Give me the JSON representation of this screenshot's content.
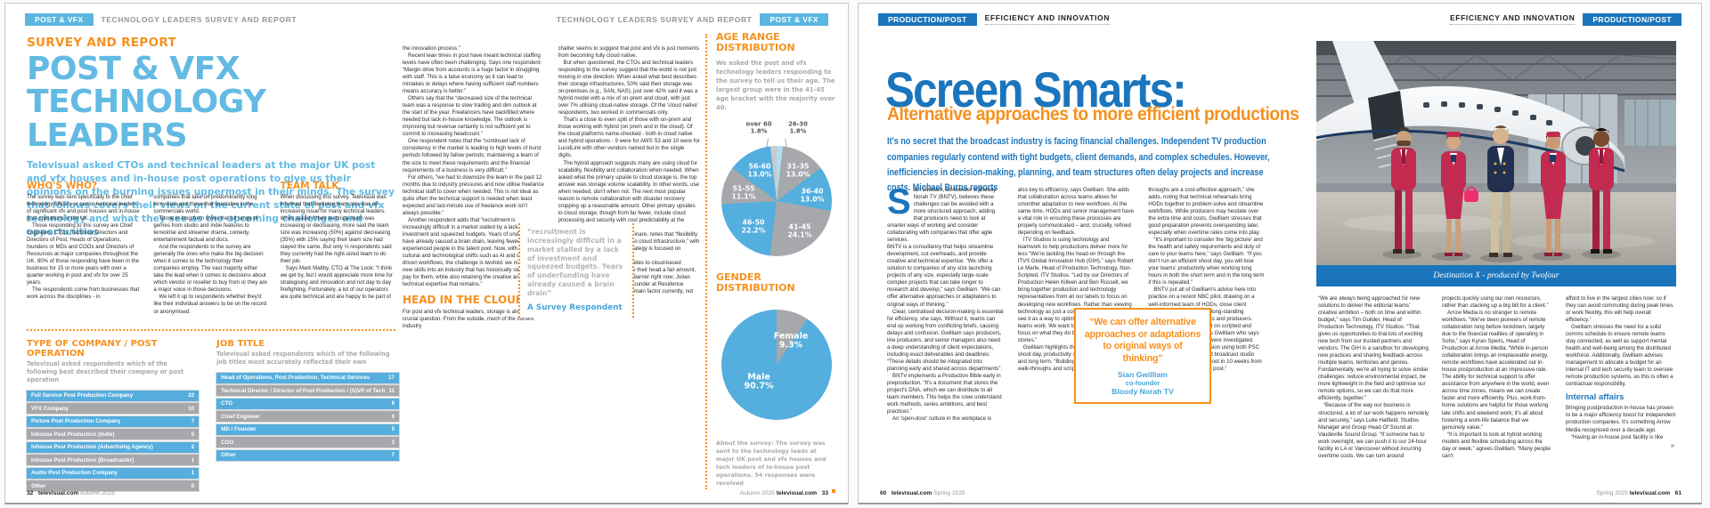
{
  "chart_data": [
    {
      "type": "pie",
      "title": "AGE RANGE DISTRIBUTION",
      "legend_position": "inside",
      "segments": [
        {
          "label": "26-30",
          "value": 1.8,
          "pct_text": "1.8%",
          "color": "#aeddf2"
        },
        {
          "label": "31-35",
          "value": 13.0,
          "pct_text": "13.0%",
          "color": "#a6a8ab"
        },
        {
          "label": "36-40",
          "value": 13.0,
          "pct_text": "13.0%",
          "color": "#54aede"
        },
        {
          "label": "41-45",
          "value": 24.1,
          "pct_text": "24.1%",
          "color": "#a6a8ab"
        },
        {
          "label": "46-50",
          "value": 22.2,
          "pct_text": "22.2%",
          "color": "#54aede"
        },
        {
          "label": "51-55",
          "value": 11.1,
          "pct_text": "11.1%",
          "color": "#a6a8ab"
        },
        {
          "label": "56-60",
          "value": 13.0,
          "pct_text": "13.0%",
          "color": "#54aede"
        },
        {
          "label": "over 60",
          "value": 1.8,
          "pct_text": "1.8%",
          "color": "#c9cacc"
        }
      ]
    },
    {
      "type": "pie",
      "title": "GENDER DISTRIBUTION",
      "legend_position": "inside",
      "segments": [
        {
          "label": "Female",
          "value": 9.3,
          "pct_text": "9.3%",
          "color": "#a6a8ab"
        },
        {
          "label": "Male",
          "value": 90.7,
          "pct_text": "90.7%",
          "color": "#54aede"
        }
      ]
    }
  ],
  "left": {
    "header": {
      "badge": "POST & VFX",
      "strap": "TECHNOLOGY LEADERS SURVEY AND REPORT"
    },
    "kicker": "SURVEY AND REPORT",
    "title": [
      "POST & VFX",
      "TECHNOLOGY LEADERS"
    ],
    "standfirst": "Televisual asked CTOs and technical leaders at the major UK post and vfx houses and in-house post operations to give us their opinions on the burning issues uppermost in their minds. The survey that follows covers their views on the current state of post and vfx technology and what they see as the upcoming challenges and opportunities",
    "whos_who": {
      "heading": "WHO'S WHO?",
      "col1": [
        "The survey was sent specifically to the chief technology officers or senior technical leaders of significant vfx and post houses and in-house post operations in the UK.",
        "Those responding to this survey are Chief Engineers, CTOs, Technical Directors and Directors of Post, Heads of Operations, founders or MDs and COOs and Directors of Resources at major companies throughout the UK. 80% of those responding have been in the business for 15 or more years with over a quarter working in post and vfx for over 25 years.",
        "The respondents come from businesses that work across the disciplines - in"
      ],
      "col2": [
        "companies that take on predominantly long form work and those that specialise in the commercials world.",
        "Those in long-form cover the full range of genres from studio and indie features to terrestrial and streamer drama, comedy, entertainment factual and docs.",
        "And the respondents to the survey are generally the ones who make the big decision when it comes to the technology their companies employ. The vast majority either take the lead when it comes to decisions about which vendor or reseller to buy from or they are a major voice in those decisions.",
        "We left it up to respondents whether they'd like their individual answers to be on the record or anonymised."
      ]
    },
    "team_talk": {
      "heading": "TEAM TALK",
      "col": [
        "When discussing this survey, Televisual was informed that declining team size was an increasing issue for many technical leaders. When asked if their technical team was increasing or decreasing, more said the team size was increasing (50%) against decreasing (35%) with 15% saying their team size had stayed the same. But only ⅓ respondents said they currently had the right-sized team to do their job.",
        "Says Mark Maltby, CTO at The Look: “I think we get by, but I would appreciate more time for strategising and innovation and not day to day firefighting. Fortunately, a lot of our operators are quite technical and are happy to be part of"
      ]
    },
    "col4a": [
      "the innovation process.”",
      "Recent lean times in post have meant technical staffing levels have often been challenging. Says one respondent: “Margin drive from accounts is a huge factor in struggling with staff. This is a false economy as it can lead to mistakes or delays where having sufficient staff numbers means accuracy is better.”",
      "Others say that the “decreased size of the technical team was a response to slow trading and dim outlook at the start of the year. Freelancers have backfilled where needed but lack in-house knowledge. The outlook is improving but revenue certainty is not sufficient yet to commit to increasing headcount.”",
      "One respondent notes that the “continued lack of consistency in the market is leading to high levels of burst periods followed by fallow periods; maintaining a team of the size to meet these requirements and the financial requirements of a business is very difficult.”",
      "For others, “we had to downsize the team in the past 12 months due to industry pressures and now utilise freelance technical staff to cover when needed. This is not ideal as quite often the technical support is needed when least expected and last-minute use of freelance work isn't always possible.”",
      "Another respondent adds that “recruitment is increasingly difficult in a market stalled by a lack of investment and squeezed budgets. Years of underfunding have already caused a brain drain, leaving fewer experienced people in the talent pool. Now, with impending cultural and technological shifts such as AI and cloud-driven workflows, the challenge is twofold: we must attract new skills into an industry that has historically struggled to pay for them, while also retaining the creative and technical expertise that remains.”"
    ],
    "clouds": {
      "heading": "HEAD IN THE CLOUDS",
      "paras": [
        "For post and vfx technical leaders, storage is always a crucial question. From the outside, much of the current industry"
      ]
    },
    "col5": [
      "chatter seems to suggest that post and vfx is just moments from becoming fully cloud native.",
      "But when questioned, the CTOs and technical leaders responding to the survey suggest that the world is not just moving in one direction. When asked what best describes their storage infrastructures, 50% said their storage was on-premises (e.g., SAN, NAS), just over 42% said it was a hybrid model with a mix of on-prem and cloud, with just over 7% utilising cloud-native storage. Of the 'cloud native' respondents, two worked in commercials only.",
      "That's a close to even split of those with on-prem and those working with hybrid (on prem and in the cloud). Of the cloud platforms name-checked - both in cloud native and hybrid operations - 9 were for AWS S3 and 10 were for LucidLink with other vendors named but in the single digits.",
      "The hybrid approach suggests many are using cloud for scalability, flexibility and collaboration when needed. When asked what the primary upside to cloud storage is, the top answer was storage volume scalability. In other words, use when needed, don't when not. The next most popular reason is remote collaboration with disaster recovery cropping up a reasonable amount. Other primary upsides to cloud storage, though from far fewer, include cloud processing and security with cost predictability at the bottom of the list.",
      "Darren Woolfson, CTO at Molinare, notes that “flexibility and resilience are key benefits to cloud infrastructure,” with others saying that “our cloud strategy is focused on security, resilience and scaling.”",
      "But many note current downsides to cloud-based storage. Security concerns raise their head a fair amount, but cost seems to be the major barrier right now; Julian Nelson, Head of Post and Co-Founder at Residence Pictures, notes that “cost is the main factor currently, not only its"
    ],
    "quote": {
      "text": "“recruitment is increasingly difficult in a market stalled by a lack of investment and squeezed budgets. Years of underfunding have already caused a brain drain”",
      "attribution": "A Survey Respondent"
    },
    "table1": {
      "heading": "TYPE OF COMPANY / POST OPERATION",
      "sub": "Televisual asked respondents which of the following best described their company or post operation",
      "rows": [
        {
          "label": "Full Service Post Production Company",
          "value": "22"
        },
        {
          "label": "VFX Company",
          "value": "10"
        },
        {
          "label": "Picture Post Production Company",
          "value": "7"
        },
        {
          "label": "Inhouse Post Production (Indie)",
          "value": "5"
        },
        {
          "label": "Inhouse Post Production (Advertising Agency)",
          "value": "2"
        },
        {
          "label": "Inhouse Post Production (Broadcaster)",
          "value": "1"
        },
        {
          "label": "Audio Post Production Company",
          "value": "1"
        },
        {
          "label": "Other",
          "value": "6"
        }
      ]
    },
    "table2": {
      "heading": "JOB TITLE",
      "sub": "Televisual asked respondents which of the following job titles most accurately reflected their own",
      "rows": [
        {
          "label": "Head of Operations, Post Production, Technical Services",
          "value": "17"
        },
        {
          "label": "Technical Director / Director of Post Production / (S)VP of Tech",
          "value": "11"
        },
        {
          "label": "CTO",
          "value": "8"
        },
        {
          "label": "Chief Engineer",
          "value": "6"
        },
        {
          "label": "MD / Founder",
          "value": "5"
        },
        {
          "label": "COO",
          "value": "3"
        },
        {
          "label": "Other",
          "value": "7"
        }
      ]
    },
    "rail": {
      "age_heading": "AGE RANGE DISTRIBUTION",
      "age_intro": "We asked the post and vfx technology leaders responding to the survey to tell us their age. The largest group were in the 41-45 age bracket with the majority over 40.",
      "gender_heading": "GENDER DISTRIBUTION",
      "about": "About the survey: The survey was sent to the technology leads at major UK post and vfx houses and tech leaders of in-house post operations. 54 responses were received"
    },
    "footer_left": {
      "page": "32",
      "site": "televisual.com",
      "season": "Autumn 2025"
    },
    "footer_right": {
      "season": "Autumn 2025",
      "site": "televisual.com",
      "page": "33"
    }
  },
  "right": {
    "header": {
      "badge": "PRODUCTION/POST",
      "strap": "EFFICIENCY AND INNOVATION"
    },
    "title": "Screen Smarts:",
    "subtitle": "Alternative approaches to more efficient productions",
    "standfirst": "It's no secret that the broadcast industry is facing financial challenges. Independent TV production companies regularly contend with tight budgets, client demands, and complex schedules. However, inefficiencies in decision-making, planning, and team structures often delay projects and increase costs. Michael Burns reports",
    "dropcap": "S",
    "col1_lead": "ian Gwilliam, co-founder of Bloody Norah TV (BNTV), believes these challenges can be avoided with a more structured approach, adding that producers need to look at smarter ways of working and consider collaborating with companies that offer agile services.",
    "col1": [
      "BNTV is a consultancy that helps streamline development, cut overheads, and provide creative and technical expertise. “We offer a solution to companies of any size launching projects of any size, especially large-scale complex projects that can take longer to research and develop,” says Gwilliam. “We can offer alternative approaches or adaptations to original ways of thinking.”",
      "Clear, centralised decision-making is essential for efficiency, she says. Without it, teams can end up working from conflicting briefs, causing delays and confusion. Gwilliam says producers, line producers, and senior managers also need a deep understanding of client expectations, including exact deliverables and deadlines: “These details should be integrated into planning early and shared across departments”.",
      "BNTV implements a Production Bible early in preproduction. “It's a document that stores the project's DNA, which we can distribute to all team members. This helps the crew understand work methods, series ambitions, and best practices.”",
      "An 'open-door' culture in the workplace is"
    ],
    "col2": [
      "also key to efficiency, says Gwilliam. She adds that collaboration across teams allows for smoother adaptation to new workflows. At the same time, HODs and senior management have a vital role in ensuring these processes are properly communicated – and, crucially, refined depending on feedback.",
      "ITV Studios is using technology and teamwork to help productions deliver more for less “We're tackling this head-on through the ITVS Global Innovation Hub (GIH),” says Robert Le Marle, Head of Production Technology, Non-Scripted, ITV Studios. “Led by our Directors of Production Helen Killeen and Ben Russell, we bring together production and technology representatives from all our labels to focus on developing new workflows. Rather than viewing technology as just a cost-cutting measure, we see it as a way to optimise how our creative teams work. We want to free up our talent to focus on what they do best – telling compelling stories.”",
      "Gwilliam highlights that without an efficient shoot day, productivity suffers both in the short and long term. “Building in rehearsals, blocking, walk-throughs and script read-"
    ],
    "col3": [
      "throughs are a cost-effective approach,” she adds, noting that technical rehearsals bring HODs together to problem-solve and streamline workflows. While producers may hesitate over the extra time and costs, Gwilliam stresses that good preparation prevents overspending later, especially when overtime rates come into play.",
      "“It's important to consider the 'big picture' and the health and safety requirements and duty of care to your teams here,” says Gwilliam. “If you don't run an efficient shoot day, you will lose your teams' productivity when working long hours in both the short term and in the long term if this is repeated.”",
      "BNTV put all of Gwilliam's advice here into practice on a recent NBC pilot, drawing on a well-informed team of HODs, close client collaboration, and its own long-standing familiarity with US networks and producers. “The innovative format lent on scripted and unscripted elements,” says Gwilliam who says several filming workflows were investigated. [Shooting] on a hybrid version using both PSC [Portable Single Crew] and broadcast studio cameras, we set up the shoot in 10 weeks from start to wrap, not including post.”"
    ],
    "quote": {
      "text": "“We can offer alternative approaches or adaptations to original ways of thinking”",
      "name": "Sian Gwilliam",
      "role": "co-founder",
      "company": "Bloody Norah TV"
    },
    "photo_caption": "Destination X - produced by Twofour",
    "below_col1": [
      "“We are always being approached for new solutions to deliver the editorial teams' creative ambition – both on time and within budget,” says Tim Guilder, Head of Production Technology, ITV Studios. “That gives us opportunities to trial lots of exciting new tech from our trusted partners and vendors. The GIH is a sandbox for developing new practices and sharing feedback across multiple teams, territories and genres. Fundamentally, we're all trying to solve similar challenges: reduce environmental impact, be more lightweight in the field and optimise our remote options, so we can do that more efficiently, together.”",
      "“Because of the way our business is structured, a lot of our work happens remotely and securely,” says Luke Hatfield, Studios Manager and Group Head Of Sound at Vaudeville Sound Group. “If someone has to work overnight, we can push it to our 24-hour facility in LA or Vancouver without incurring overtime costs. We can turn around"
    ],
    "below_col2": [
      "projects quickly using our own resources, rather than stacking up a big bill for a client.”",
      "Arrow Media is no stranger to remote workflows. “We've been pioneers of remote collaboration long before lockdown, largely due to the financial realities of operating in Soho,” says Kyran Speirs, Head of Production at Arrow Media. “While in-person collaboration brings an irreplaceable energy, remote workflows have accelerated our in-house postproduction at an impressive rate. The ability for technical support to offer assistance from anywhere in the world, even across time zones, means we can create faster and more efficiently. Plus, work-from-home solutions are helpful for those working late shifts and weekend work; it's all about fostering a work-life balance that we genuinely value.”",
      "“It is important to look at hybrid working models and flexible scheduling across the day or week,” agrees Gwilliam. “Many people can't"
    ],
    "below_col3a": [
      "afford to live in the largest cities now; so if they can avoid commuting during peak times or work flexibly, this will help overall efficiency.”",
      "Gwilliam stresses the need for a solid comms schedule to ensure remote teams stay connected, as well as support mental health and well-being among the distributed workforce. Additionally, Gwilliam advises management to allocate a budget for an internal IT and tech security team to oversee remote production systems, as this is often a contractual responsibility."
    ],
    "internal_heading": "Internal affairs",
    "below_col3b": [
      "Bringing postproduction in-house has proven to be a major efficiency boost for independent production companies. It's something Arrow Media recognised over a decade ago.",
      "“Having an in-house post facility is like"
    ],
    "continued_marker": "►",
    "footer_left": {
      "page": "60",
      "site": "televisual.com",
      "season": "Spring 2025"
    },
    "footer_right": {
      "season": "Spring 2025",
      "site": "televisual.com",
      "page": "61"
    }
  }
}
